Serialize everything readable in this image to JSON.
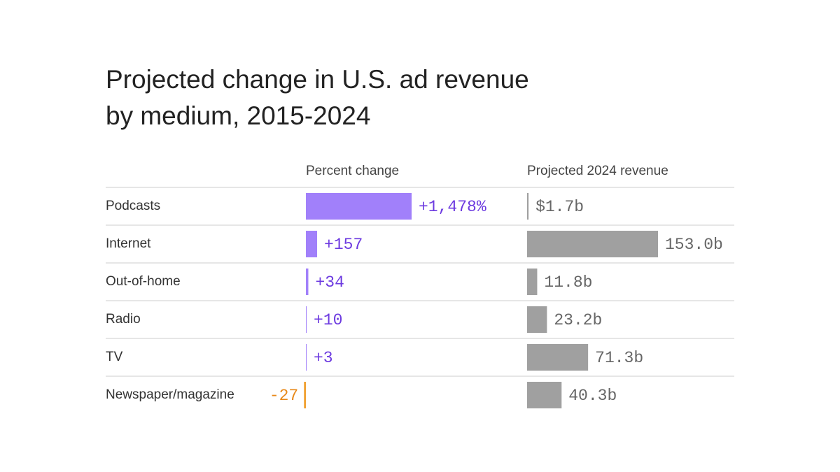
{
  "chart_data": {
    "type": "bar",
    "title": "Projected change in U.S. ad revenue by medium, 2015-2024",
    "categories": [
      "Podcasts",
      "Internet",
      "Out-of-home",
      "Radio",
      "TV",
      "Newspaper/magazine"
    ],
    "series": [
      {
        "name": "Percent change",
        "color": "#a180fa",
        "negative_color": "#f0a030",
        "values": [
          1478,
          157,
          34,
          10,
          3,
          -27
        ],
        "value_labels": [
          "+1,478%",
          "+157",
          "+34",
          "+10",
          "+3",
          "-27"
        ]
      },
      {
        "name": "Projected 2024 revenue",
        "color": "#a0a0a0",
        "values": [
          1.7,
          153.0,
          11.8,
          23.2,
          71.3,
          40.3
        ],
        "value_labels": [
          "$1.7b",
          "153.0b",
          "11.8b",
          "23.2b",
          "71.3b",
          "40.3b"
        ]
      }
    ]
  }
}
